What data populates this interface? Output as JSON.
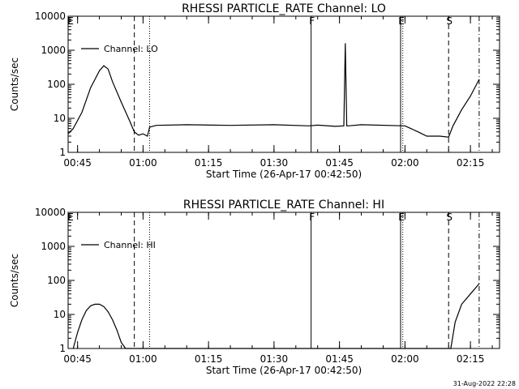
{
  "chart_data": [
    {
      "type": "line",
      "title": "RHESSI PARTICLE_RATE Channel: LO",
      "xlabel": "Start Time (26-Apr-17 00:42:50)",
      "ylabel": "Counts/sec",
      "yscale": "log",
      "ylim": [
        1,
        10000
      ],
      "xlim": [
        "00:42:50",
        "02:21:40"
      ],
      "x_ticks": [
        "00:45",
        "01:00",
        "01:15",
        "01:30",
        "01:45",
        "02:00",
        "02:15"
      ],
      "y_ticks": [
        "1",
        "10",
        "100",
        "1000",
        "10000"
      ],
      "legend": {
        "position": "top-left",
        "entries": [
          "Channel: LO"
        ]
      },
      "grid": false,
      "series": [
        {
          "name": "Channel: LO",
          "x": [
            "00:42:50",
            "00:44:00",
            "00:46:00",
            "00:48:00",
            "00:50:00",
            "00:51:00",
            "00:52:00",
            "00:53:00",
            "00:55:00",
            "00:57:00",
            "00:58:00",
            "00:59:00",
            "01:00:00",
            "01:01:00",
            "01:01:30",
            "01:03:00",
            "01:10:00",
            "01:20:00",
            "01:30:00",
            "01:38:00",
            "01:40:00",
            "01:44:00",
            "01:46:00",
            "01:46:20",
            "01:46:40",
            "01:47:00",
            "01:50:00",
            "02:00:00",
            "02:03:00",
            "02:05:00",
            "02:08:00",
            "02:10:00",
            "02:11:00",
            "02:13:00",
            "02:15:00",
            "02:17:00"
          ],
          "values": [
            3.5,
            5,
            15,
            80,
            250,
            350,
            280,
            120,
            30,
            8,
            4,
            3.2,
            3.5,
            3,
            5.5,
            6.2,
            6.5,
            6.2,
            6.5,
            6,
            6.3,
            5.8,
            6,
            1600,
            6,
            6,
            6.5,
            6,
            4,
            3,
            3,
            2.8,
            6,
            18,
            45,
            140
          ]
        }
      ],
      "markers": [
        {
          "label": "F",
          "x": "01:38:30",
          "style": "solid"
        },
        {
          "label": "E",
          "x": "01:59:00",
          "style": "solid"
        },
        {
          "label": "S",
          "x": "02:10:00",
          "style": "dashed"
        },
        {
          "label": "",
          "x": "00:58:00",
          "style": "dashed"
        },
        {
          "label": "",
          "x": "01:01:30",
          "style": "dotted"
        },
        {
          "label": "",
          "x": "01:59:30",
          "style": "dotted"
        },
        {
          "label": "",
          "x": "02:17:00",
          "style": "dashdot"
        }
      ],
      "corner_label": "E"
    },
    {
      "type": "line",
      "title": "RHESSI PARTICLE_RATE Channel: HI",
      "xlabel": "Start Time (26-Apr-17 00:42:50)",
      "ylabel": "Counts/sec",
      "yscale": "log",
      "ylim": [
        1,
        10000
      ],
      "xlim": [
        "00:42:50",
        "02:21:40"
      ],
      "x_ticks": [
        "00:45",
        "01:00",
        "01:15",
        "01:30",
        "01:45",
        "02:00",
        "02:15"
      ],
      "y_ticks": [
        "1",
        "10",
        "100",
        "1000",
        "10000"
      ],
      "legend": {
        "position": "top-left",
        "entries": [
          "Channel: HI"
        ]
      },
      "grid": false,
      "series": [
        {
          "name": "Channel: HI",
          "x": [
            "00:44:00",
            "00:45:00",
            "00:46:00",
            "00:47:00",
            "00:48:00",
            "00:49:00",
            "00:50:00",
            "00:51:00",
            "00:52:00",
            "00:53:00",
            "00:54:00",
            "00:55:00",
            "00:56:00",
            "02:10:30",
            "02:11:30",
            "02:13:00",
            "02:15:00",
            "02:17:00"
          ],
          "values": [
            1,
            3,
            7,
            13,
            18,
            20,
            20,
            17,
            12,
            7,
            3.5,
            1.5,
            1,
            1,
            6,
            20,
            40,
            80
          ]
        }
      ],
      "markers": [
        {
          "label": "F",
          "x": "01:38:30",
          "style": "solid"
        },
        {
          "label": "E",
          "x": "01:59:00",
          "style": "solid"
        },
        {
          "label": "S",
          "x": "02:10:00",
          "style": "dashed"
        },
        {
          "label": "",
          "x": "00:58:00",
          "style": "dashed"
        },
        {
          "label": "",
          "x": "01:01:30",
          "style": "dotted"
        },
        {
          "label": "",
          "x": "01:59:30",
          "style": "dotted"
        },
        {
          "label": "",
          "x": "02:17:00",
          "style": "dashdot"
        }
      ],
      "corner_label": "E"
    }
  ],
  "timestamp": "31-Aug-2022 22:28"
}
